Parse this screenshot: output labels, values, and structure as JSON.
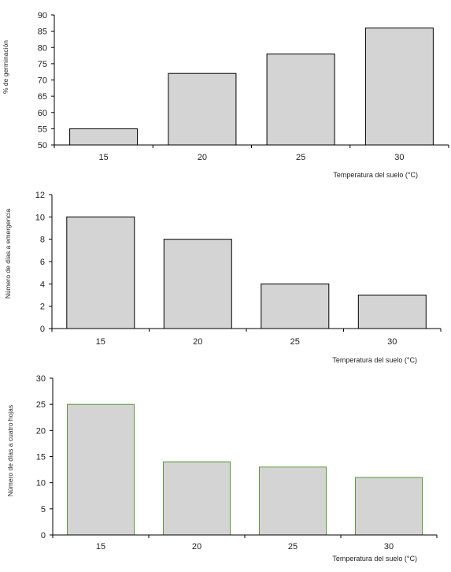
{
  "chart_data": [
    {
      "type": "bar",
      "categories": [
        "15",
        "20",
        "25",
        "30"
      ],
      "values": [
        55,
        72,
        78,
        86
      ],
      "xlabel": "Temperatura del suelo (°C)",
      "ylabel": "% de germinación",
      "ylim": [
        50,
        90
      ],
      "yticks": [
        50,
        55,
        60,
        65,
        70,
        75,
        80,
        85,
        90
      ],
      "bar_fill": "#d4d4d4",
      "bar_stroke": "#000000",
      "grid": false
    },
    {
      "type": "bar",
      "categories": [
        "15",
        "20",
        "25",
        "30"
      ],
      "values": [
        10,
        8,
        4,
        3
      ],
      "xlabel": "Temperatura del suelo (°C)",
      "ylabel": "Número de días a emergencia",
      "ylim": [
        0,
        12
      ],
      "yticks": [
        0,
        2,
        4,
        6,
        8,
        10,
        12
      ],
      "bar_fill": "#d4d4d4",
      "bar_stroke": "#000000",
      "grid": false
    },
    {
      "type": "bar",
      "categories": [
        "15",
        "20",
        "25",
        "30"
      ],
      "values": [
        25,
        14,
        13,
        11
      ],
      "xlabel": "Temperatura del suelo (°C)",
      "ylabel": "Número de días a cuatro hojas",
      "ylim": [
        0,
        30
      ],
      "yticks": [
        0,
        5,
        10,
        15,
        20,
        25,
        30
      ],
      "bar_fill": "#d4d4d4",
      "bar_stroke": "#5a9a3c",
      "grid": false
    }
  ]
}
